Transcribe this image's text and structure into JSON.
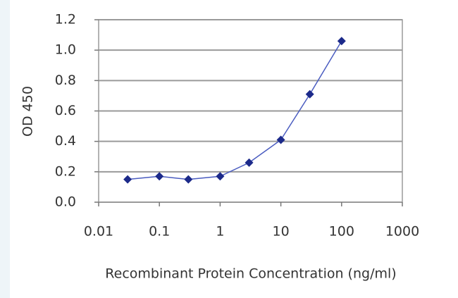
{
  "chart_data": {
    "type": "line",
    "x_label": "Recombinant Protein Concentration (ng/ml)",
    "y_label": "OD 450",
    "x": [
      0.03,
      0.1,
      0.3,
      1,
      3,
      10,
      30,
      100
    ],
    "values": [
      0.15,
      0.17,
      0.15,
      0.17,
      0.26,
      0.41,
      0.71,
      1.06
    ],
    "color": "#1c2a8a",
    "line_color": "#4a5cc0",
    "xscale": "log",
    "xlim": [
      0.01,
      1000
    ],
    "xticks": [
      0.01,
      0.1,
      1,
      10,
      100,
      1000
    ],
    "ylim": [
      0,
      1.2
    ],
    "yticks": [
      {
        "value": 0,
        "label": "0.0"
      },
      0.2,
      0.4,
      0.6,
      0.8,
      {
        "value": 1,
        "label": "1.0"
      },
      1.2
    ],
    "grid": true
  }
}
